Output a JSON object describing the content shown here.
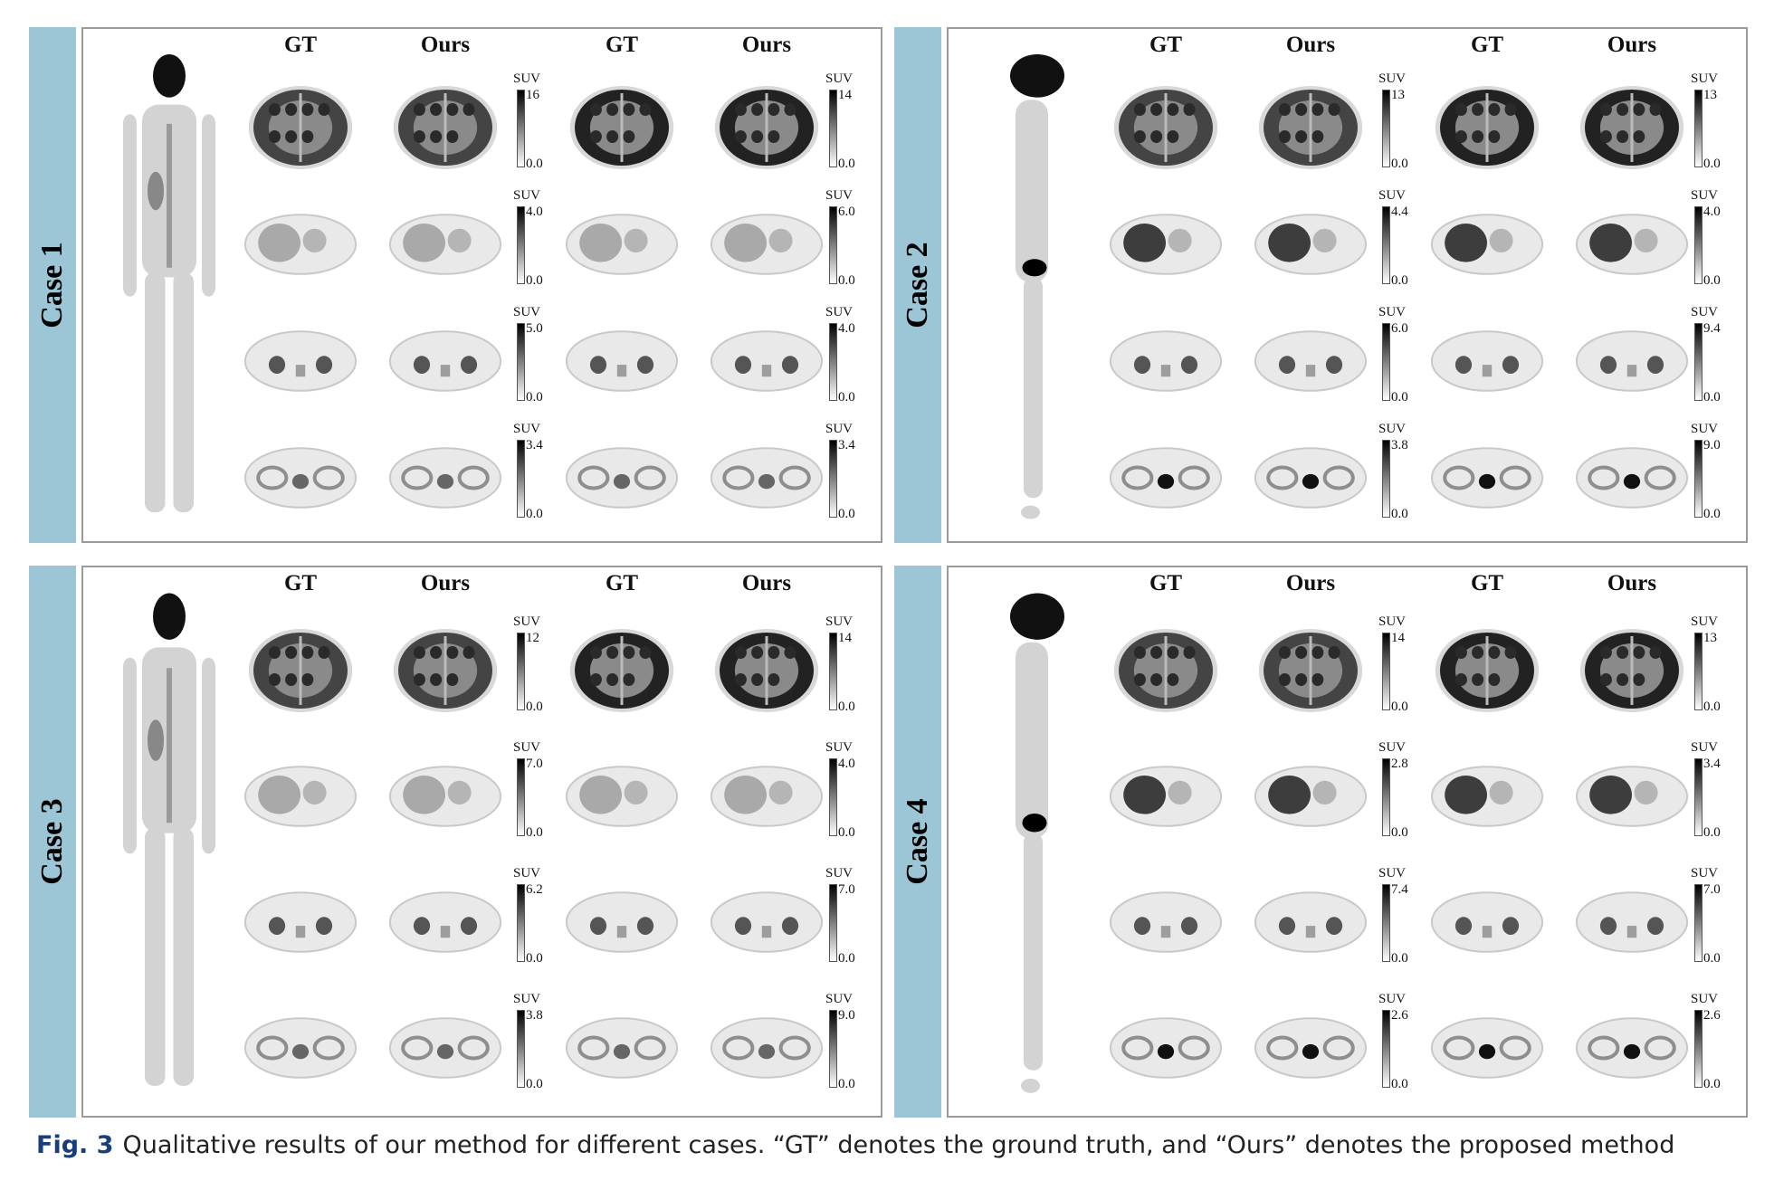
{
  "cases": [
    {
      "label": "Case 1",
      "columns": [
        "GT",
        "Ours",
        "GT",
        "Ours"
      ],
      "rows": [
        {
          "left_cbar": {
            "unit": "SUV",
            "max": "16",
            "min": "0.0"
          },
          "right_cbar": {
            "unit": "SUV",
            "max": "14",
            "min": "0.0"
          }
        },
        {
          "left_cbar": {
            "unit": "SUV",
            "max": "4.0",
            "min": "0.0"
          },
          "right_cbar": {
            "unit": "SUV",
            "max": "6.0",
            "min": "0.0"
          }
        },
        {
          "left_cbar": {
            "unit": "SUV",
            "max": "5.0",
            "min": "0.0"
          },
          "right_cbar": {
            "unit": "SUV",
            "max": "4.0",
            "min": "0.0"
          }
        },
        {
          "left_cbar": {
            "unit": "SUV",
            "max": "3.4",
            "min": "0.0"
          },
          "right_cbar": {
            "unit": "SUV",
            "max": "3.4",
            "min": "0.0"
          }
        }
      ]
    },
    {
      "label": "Case 2",
      "columns": [
        "GT",
        "Ours",
        "GT",
        "Ours"
      ],
      "rows": [
        {
          "left_cbar": {
            "unit": "SUV",
            "max": "13",
            "min": "0.0"
          },
          "right_cbar": {
            "unit": "SUV",
            "max": "13",
            "min": "0.0"
          }
        },
        {
          "left_cbar": {
            "unit": "SUV",
            "max": "4.4",
            "min": "0.0"
          },
          "right_cbar": {
            "unit": "SUV",
            "max": "4.0",
            "min": "0.0"
          }
        },
        {
          "left_cbar": {
            "unit": "SUV",
            "max": "6.0",
            "min": "0.0"
          },
          "right_cbar": {
            "unit": "SUV",
            "max": "9.4",
            "min": "0.0"
          }
        },
        {
          "left_cbar": {
            "unit": "SUV",
            "max": "3.8",
            "min": "0.0"
          },
          "right_cbar": {
            "unit": "SUV",
            "max": "9.0",
            "min": "0.0"
          }
        }
      ]
    },
    {
      "label": "Case 3",
      "columns": [
        "GT",
        "Ours",
        "GT",
        "Ours"
      ],
      "rows": [
        {
          "left_cbar": {
            "unit": "SUV",
            "max": "12",
            "min": "0.0"
          },
          "right_cbar": {
            "unit": "SUV",
            "max": "14",
            "min": "0.0"
          }
        },
        {
          "left_cbar": {
            "unit": "SUV",
            "max": "7.0",
            "min": "0.0"
          },
          "right_cbar": {
            "unit": "SUV",
            "max": "4.0",
            "min": "0.0"
          }
        },
        {
          "left_cbar": {
            "unit": "SUV",
            "max": "6.2",
            "min": "0.0"
          },
          "right_cbar": {
            "unit": "SUV",
            "max": "7.0",
            "min": "0.0"
          }
        },
        {
          "left_cbar": {
            "unit": "SUV",
            "max": "3.8",
            "min": "0.0"
          },
          "right_cbar": {
            "unit": "SUV",
            "max": "9.0",
            "min": "0.0"
          }
        }
      ]
    },
    {
      "label": "Case 4",
      "columns": [
        "GT",
        "Ours",
        "GT",
        "Ours"
      ],
      "rows": [
        {
          "left_cbar": {
            "unit": "SUV",
            "max": "14",
            "min": "0.0"
          },
          "right_cbar": {
            "unit": "SUV",
            "max": "13",
            "min": "0.0"
          }
        },
        {
          "left_cbar": {
            "unit": "SUV",
            "max": "2.8",
            "min": "0.0"
          },
          "right_cbar": {
            "unit": "SUV",
            "max": "3.4",
            "min": "0.0"
          }
        },
        {
          "left_cbar": {
            "unit": "SUV",
            "max": "7.4",
            "min": "0.0"
          },
          "right_cbar": {
            "unit": "SUV",
            "max": "7.0",
            "min": "0.0"
          }
        },
        {
          "left_cbar": {
            "unit": "SUV",
            "max": "2.6",
            "min": "0.0"
          },
          "right_cbar": {
            "unit": "SUV",
            "max": "2.6",
            "min": "0.0"
          }
        }
      ]
    }
  ],
  "caption": {
    "figno": "Fig. 3",
    "text": "Qualitative results of our method for different cases. “GT” denotes the ground truth, and “Ours” denotes the proposed method"
  },
  "colors": {
    "tab": "#9cc6d6",
    "frame": "#9a9a9a",
    "caption_figno": "#1a3d7c"
  }
}
